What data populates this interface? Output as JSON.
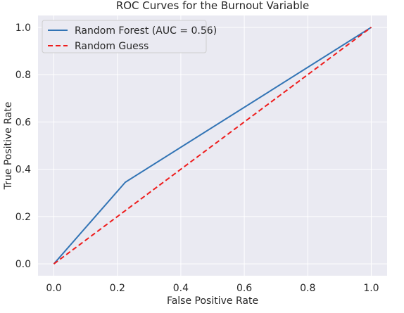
{
  "chart_data": {
    "type": "line",
    "title": "ROC Curves for the Burnout Variable",
    "xlabel": "False Positive Rate",
    "ylabel": "True Positive Rate",
    "xlim": [
      -0.05,
      1.05
    ],
    "ylim": [
      -0.05,
      1.05
    ],
    "x_ticks": [
      0.0,
      0.2,
      0.4,
      0.6,
      0.8,
      1.0
    ],
    "y_ticks": [
      0.0,
      0.2,
      0.4,
      0.6,
      0.8,
      1.0
    ],
    "x_tick_labels": [
      "0.0",
      "0.2",
      "0.4",
      "0.6",
      "0.8",
      "1.0"
    ],
    "y_tick_labels": [
      "0.0",
      "0.2",
      "0.4",
      "0.6",
      "0.8",
      "1.0"
    ],
    "grid": true,
    "legend_position": "top-left",
    "series": [
      {
        "name": "Random Forest (AUC = 0.56)",
        "color": "#3274b5",
        "dash": "solid",
        "x": [
          0.0,
          0.225,
          1.0
        ],
        "y": [
          0.0,
          0.345,
          1.0
        ]
      },
      {
        "name": "Random Guess",
        "color": "#ee1c1c",
        "dash": "dashed",
        "x": [
          0.0,
          1.0
        ],
        "y": [
          0.0,
          1.0
        ]
      }
    ]
  }
}
